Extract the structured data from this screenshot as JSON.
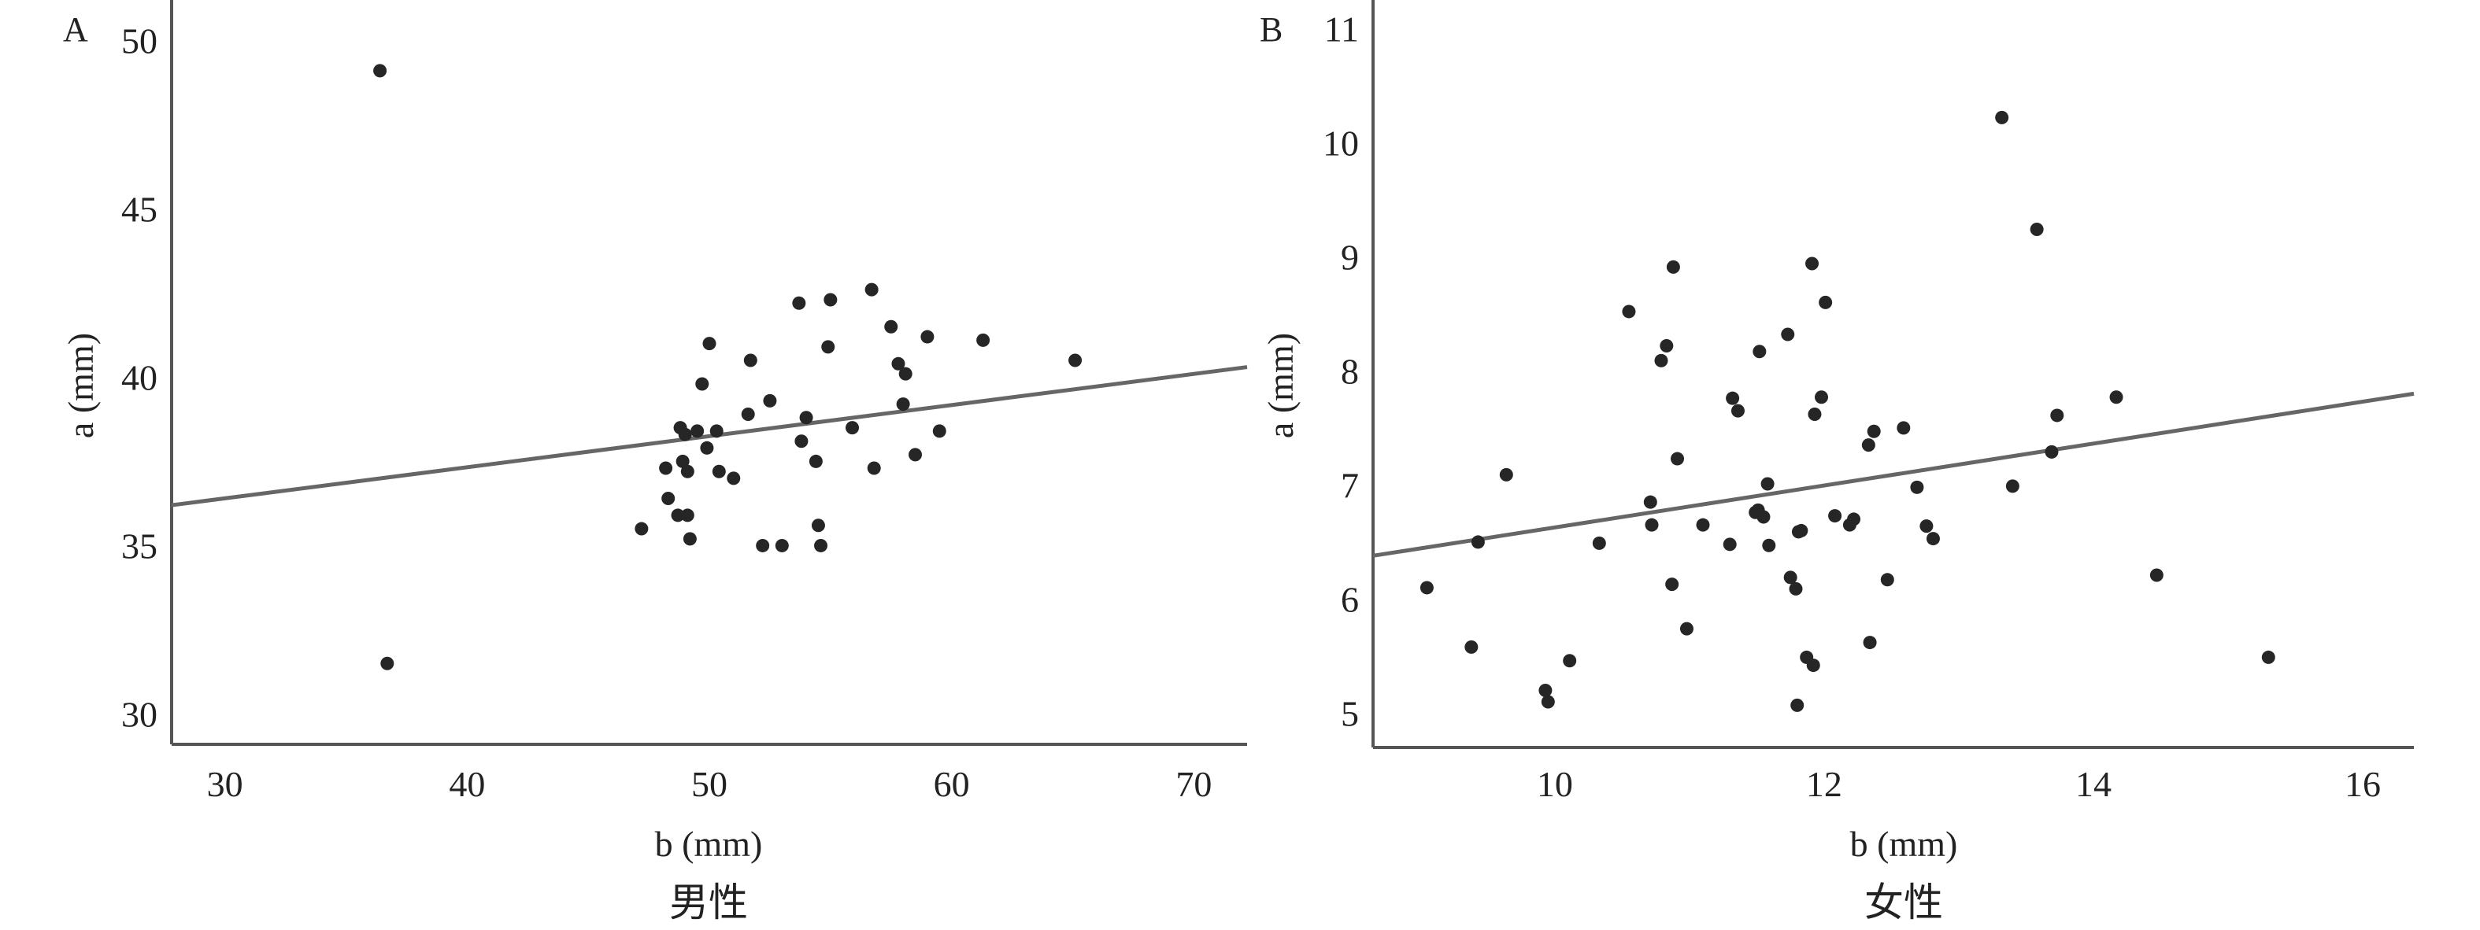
{
  "chart_data": [
    {
      "type": "scatter",
      "panel_label": "A",
      "caption": "男性",
      "xlabel": "b (mm)",
      "ylabel": "a (mm)",
      "xlim": [
        27.8,
        72.2
      ],
      "ylim": [
        29.1,
        51.2
      ],
      "xticks": [
        30,
        40,
        50,
        60,
        70
      ],
      "yticks": [
        30,
        35,
        40,
        45,
        50
      ],
      "grid": false,
      "trend_line": {
        "x": [
          27.8,
          72.2
        ],
        "y": [
          36.2,
          40.3
        ]
      },
      "points": [
        {
          "x": 36.4,
          "y": 49.1
        },
        {
          "x": 36.7,
          "y": 31.5
        },
        {
          "x": 47.2,
          "y": 35.5
        },
        {
          "x": 48.2,
          "y": 37.3
        },
        {
          "x": 48.3,
          "y": 36.4
        },
        {
          "x": 48.7,
          "y": 35.9
        },
        {
          "x": 48.8,
          "y": 38.5
        },
        {
          "x": 48.9,
          "y": 37.5
        },
        {
          "x": 49.0,
          "y": 38.3
        },
        {
          "x": 49.1,
          "y": 35.9
        },
        {
          "x": 49.1,
          "y": 37.2
        },
        {
          "x": 49.2,
          "y": 35.2
        },
        {
          "x": 49.5,
          "y": 38.4
        },
        {
          "x": 49.7,
          "y": 39.8
        },
        {
          "x": 49.9,
          "y": 37.9
        },
        {
          "x": 50.0,
          "y": 41.0
        },
        {
          "x": 50.3,
          "y": 38.4
        },
        {
          "x": 50.4,
          "y": 37.2
        },
        {
          "x": 51.0,
          "y": 37.0
        },
        {
          "x": 51.6,
          "y": 38.9
        },
        {
          "x": 51.7,
          "y": 40.5
        },
        {
          "x": 52.2,
          "y": 35.0
        },
        {
          "x": 52.5,
          "y": 39.3
        },
        {
          "x": 53.0,
          "y": 35.0
        },
        {
          "x": 53.7,
          "y": 42.2
        },
        {
          "x": 53.8,
          "y": 38.1
        },
        {
          "x": 54.0,
          "y": 38.8
        },
        {
          "x": 54.4,
          "y": 37.5
        },
        {
          "x": 54.5,
          "y": 35.6
        },
        {
          "x": 54.6,
          "y": 35.0
        },
        {
          "x": 54.9,
          "y": 40.9
        },
        {
          "x": 55.0,
          "y": 42.3
        },
        {
          "x": 55.9,
          "y": 38.5
        },
        {
          "x": 56.7,
          "y": 42.6
        },
        {
          "x": 56.8,
          "y": 37.3
        },
        {
          "x": 57.5,
          "y": 41.5
        },
        {
          "x": 57.8,
          "y": 40.4
        },
        {
          "x": 58.0,
          "y": 39.2
        },
        {
          "x": 58.1,
          "y": 40.1
        },
        {
          "x": 58.5,
          "y": 37.7
        },
        {
          "x": 59.0,
          "y": 41.2
        },
        {
          "x": 59.5,
          "y": 38.4
        },
        {
          "x": 61.3,
          "y": 41.1
        },
        {
          "x": 65.1,
          "y": 40.5
        }
      ]
    },
    {
      "type": "scatter",
      "panel_label": "B",
      "caption": "女性",
      "xlabel": "b (mm)",
      "ylabel": "a (mm)",
      "xlim": [
        8.65,
        16.38
      ],
      "ylim": [
        4.7,
        11.25
      ],
      "xticks": [
        10,
        12,
        14,
        16
      ],
      "yticks": [
        5,
        6,
        7,
        8,
        9,
        10,
        11
      ],
      "grid": false,
      "trend_line": {
        "x": [
          8.65,
          16.38
        ],
        "y": [
          6.38,
          7.8
        ]
      },
      "points": [
        {
          "x": 9.05,
          "y": 6.1
        },
        {
          "x": 9.38,
          "y": 5.58
        },
        {
          "x": 9.43,
          "y": 6.5
        },
        {
          "x": 9.64,
          "y": 7.09
        },
        {
          "x": 9.93,
          "y": 5.2
        },
        {
          "x": 9.95,
          "y": 5.1
        },
        {
          "x": 10.11,
          "y": 5.46
        },
        {
          "x": 10.33,
          "y": 6.49
        },
        {
          "x": 10.55,
          "y": 8.52
        },
        {
          "x": 10.71,
          "y": 6.85
        },
        {
          "x": 10.72,
          "y": 6.65
        },
        {
          "x": 10.79,
          "y": 8.09
        },
        {
          "x": 10.83,
          "y": 8.22
        },
        {
          "x": 10.87,
          "y": 6.13
        },
        {
          "x": 10.88,
          "y": 8.91
        },
        {
          "x": 10.91,
          "y": 7.23
        },
        {
          "x": 10.98,
          "y": 5.74
        },
        {
          "x": 11.1,
          "y": 6.65
        },
        {
          "x": 11.3,
          "y": 6.48
        },
        {
          "x": 11.32,
          "y": 7.76
        },
        {
          "x": 11.36,
          "y": 7.65
        },
        {
          "x": 11.49,
          "y": 6.76
        },
        {
          "x": 11.51,
          "y": 6.78
        },
        {
          "x": 11.52,
          "y": 8.17
        },
        {
          "x": 11.55,
          "y": 6.72
        },
        {
          "x": 11.58,
          "y": 7.01
        },
        {
          "x": 11.59,
          "y": 6.47
        },
        {
          "x": 11.73,
          "y": 8.32
        },
        {
          "x": 11.75,
          "y": 6.19
        },
        {
          "x": 11.79,
          "y": 6.09
        },
        {
          "x": 11.8,
          "y": 5.07
        },
        {
          "x": 11.81,
          "y": 6.59
        },
        {
          "x": 11.83,
          "y": 6.6
        },
        {
          "x": 11.87,
          "y": 5.49
        },
        {
          "x": 11.91,
          "y": 8.94
        },
        {
          "x": 11.92,
          "y": 5.42
        },
        {
          "x": 11.93,
          "y": 7.62
        },
        {
          "x": 11.98,
          "y": 7.77
        },
        {
          "x": 12.01,
          "y": 8.6
        },
        {
          "x": 12.08,
          "y": 6.73
        },
        {
          "x": 12.19,
          "y": 6.65
        },
        {
          "x": 12.22,
          "y": 6.7
        },
        {
          "x": 12.33,
          "y": 7.35
        },
        {
          "x": 12.34,
          "y": 5.62
        },
        {
          "x": 12.37,
          "y": 7.47
        },
        {
          "x": 12.47,
          "y": 6.17
        },
        {
          "x": 12.59,
          "y": 7.5
        },
        {
          "x": 12.69,
          "y": 6.98
        },
        {
          "x": 12.76,
          "y": 6.64
        },
        {
          "x": 12.81,
          "y": 6.53
        },
        {
          "x": 13.32,
          "y": 10.22
        },
        {
          "x": 13.4,
          "y": 6.99
        },
        {
          "x": 13.58,
          "y": 9.24
        },
        {
          "x": 13.69,
          "y": 7.29
        },
        {
          "x": 13.73,
          "y": 7.61
        },
        {
          "x": 14.17,
          "y": 7.77
        },
        {
          "x": 14.47,
          "y": 6.21
        },
        {
          "x": 15.3,
          "y": 5.49
        }
      ]
    }
  ]
}
